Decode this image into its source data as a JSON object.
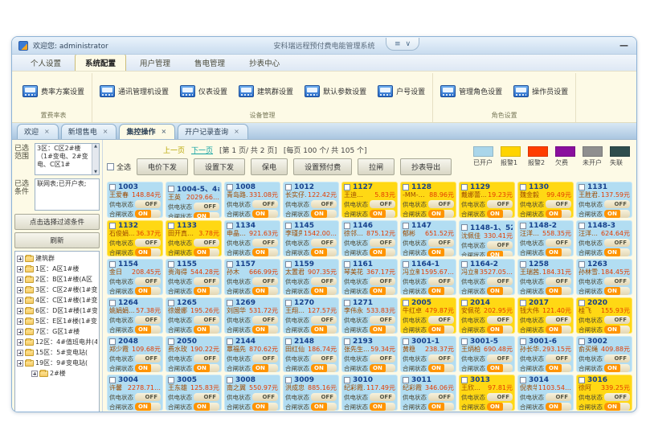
{
  "window": {
    "welcome": "欢迎您: administrator",
    "title": "安科瑞远程预付费电能管理系统",
    "minimize_glyph": "—"
  },
  "icons": {
    "close": "×",
    "ribbon_toggle": "≡",
    "dropdown": "∨",
    "scroll_up": "▲",
    "scroll_down": "▼"
  },
  "menu": {
    "tabs": [
      {
        "label": "个人设置",
        "active": false
      },
      {
        "label": "系统配置",
        "active": true
      },
      {
        "label": "用户管理",
        "active": false
      },
      {
        "label": "售电管理",
        "active": false
      },
      {
        "label": "抄表中心",
        "active": false
      }
    ]
  },
  "ribbon": {
    "groups": [
      {
        "caption": "置费率表",
        "buttons": [
          {
            "label": "费率方案设置"
          }
        ]
      },
      {
        "caption": "设备管理",
        "buttons": [
          {
            "label": "通讯管理机设置"
          },
          {
            "label": "仪表设置"
          },
          {
            "label": "建筑群设置"
          },
          {
            "label": "默认参数设置"
          },
          {
            "label": "户号设置"
          }
        ]
      },
      {
        "caption": "角色设置",
        "buttons": [
          {
            "label": "管理角色设置"
          },
          {
            "label": "操作员设置"
          }
        ]
      }
    ]
  },
  "doc_tabs": [
    {
      "label": "欢迎",
      "active": false
    },
    {
      "label": "新增售电",
      "active": false
    },
    {
      "label": "集控操作",
      "active": true
    },
    {
      "label": "开户记录查询",
      "active": false
    }
  ],
  "sidebar": {
    "range_label": "已选范围",
    "range_text": "3区：C区2#楼（1#变电、2#变电、C区1#",
    "cond_label": "已选条件",
    "cond_text": "联网表;已开户表;",
    "filter_button": "点击选择过滤条件",
    "refresh_button": "刷新",
    "tree_root": "建筑群",
    "tree_items": [
      {
        "label": "1区：A区1#楼"
      },
      {
        "label": "2区：B区1#楼(A区"
      },
      {
        "label": "3区：C区2#楼(1#变"
      },
      {
        "label": "4区：C区1#楼(1#变"
      },
      {
        "label": "6区：D区1#楼(1#变"
      },
      {
        "label": "5区：E区1#楼(1#变1"
      },
      {
        "label": "7区：G区1#楼"
      },
      {
        "label": "12区：4#值班电井(4#"
      },
      {
        "label": "15区：5#变电站("
      },
      {
        "label": "19区：9#变电站("
      },
      {
        "label": "2#楼",
        "child": true
      }
    ]
  },
  "pager": {
    "prev": "上一页",
    "next": "下一页",
    "page_info": "[第 1 页/ 共 2 页]",
    "count_info": "[每页 100 个/ 共 105 个]"
  },
  "toolbar": {
    "select_all": "全选",
    "buttons": [
      {
        "label": "电价下发"
      },
      {
        "label": "设置下发"
      },
      {
        "label": "保电"
      },
      {
        "label": "设置预付费"
      },
      {
        "label": "拉闸"
      },
      {
        "label": "抄表导出"
      }
    ]
  },
  "legend": [
    {
      "label": "已开户",
      "color": "#aad6ea"
    },
    {
      "label": "报警1",
      "color": "#ffd400"
    },
    {
      "label": "报警2",
      "color": "#ff3d00"
    },
    {
      "label": "欠费",
      "color": "#8a0f9e"
    },
    {
      "label": "未开户",
      "color": "#8f8f8f"
    },
    {
      "label": "失联",
      "color": "#2e4d4d"
    }
  ],
  "colors": {
    "open": "#b2ddf2",
    "alarm1": "#ffd814"
  },
  "card_labels": {
    "supply": "供电状态",
    "close": "合闸状态",
    "off": "OFF",
    "on": "ON"
  },
  "cards": [
    {
      "id": "1003",
      "name": "王爱春",
      "amount": "148.84元",
      "status": "open"
    },
    {
      "id": "1004-5、4#--",
      "name": "王英",
      "amount": "2029.66…",
      "status": "open"
    },
    {
      "id": "1008",
      "name": "青岛路…",
      "amount": "331.08元",
      "status": "open"
    },
    {
      "id": "1012",
      "name": "长实仔…",
      "amount": "122.42元",
      "status": "open"
    },
    {
      "id": "1127",
      "name": "王迪…",
      "amount": "5.83元",
      "status": "alarm1"
    },
    {
      "id": "1128",
      "name": "-MM-…",
      "amount": "88.96元",
      "status": "alarm1"
    },
    {
      "id": "1129",
      "name": "戴娜蕾…",
      "amount": "19.23元",
      "status": "alarm1"
    },
    {
      "id": "1130",
      "name": "魏金毅",
      "amount": "99.49元",
      "status": "alarm1"
    },
    {
      "id": "1131",
      "name": "王胜君…",
      "amount": "137.59元",
      "status": "open"
    },
    {
      "id": "1132",
      "name": "石俊娟…",
      "amount": "36.37元",
      "status": "alarm1"
    },
    {
      "id": "1133",
      "name": "田开真…",
      "amount": "3.78元",
      "status": "alarm1"
    },
    {
      "id": "1134",
      "name": "申晶…",
      "amount": "921.63元",
      "status": "open"
    },
    {
      "id": "1145",
      "name": "李瑾先…",
      "amount": "1542.00…",
      "status": "open"
    },
    {
      "id": "1146",
      "name": "徐邻…",
      "amount": "875.12元",
      "status": "open"
    },
    {
      "id": "1147",
      "name": "郁彬",
      "amount": "651.52元",
      "status": "open"
    },
    {
      "id": "1148-1、522",
      "name": "沈佩佳",
      "amount": "330.41元",
      "status": "open"
    },
    {
      "id": "1148-2",
      "name": "汪洋…",
      "amount": "558.35元",
      "status": "open"
    },
    {
      "id": "1148-3",
      "name": "汪洋…",
      "amount": "624.64元",
      "status": "open"
    },
    {
      "id": "1154",
      "name": "金日",
      "amount": "208.45元",
      "status": "open"
    },
    {
      "id": "1155",
      "name": "贵海得",
      "amount": "544.28元",
      "status": "open"
    },
    {
      "id": "1157",
      "name": "孙木",
      "amount": "666.99元",
      "status": "open"
    },
    {
      "id": "1159",
      "name": "太置君",
      "amount": "907.35元",
      "status": "open"
    },
    {
      "id": "1161",
      "name": "琴美花",
      "amount": "367.17元",
      "status": "open"
    },
    {
      "id": "1164-1",
      "name": "冯立新…",
      "amount": "1595.67…",
      "status": "open"
    },
    {
      "id": "1164-2",
      "name": "冯立新",
      "amount": "3527.05…",
      "status": "open"
    },
    {
      "id": "1258",
      "name": "王瑞茜…",
      "amount": "184.31元",
      "status": "open"
    },
    {
      "id": "1263",
      "name": "孙林雪…",
      "amount": "184.45元",
      "status": "open"
    },
    {
      "id": "1264",
      "name": "姚娟娟…",
      "amount": "57.38元",
      "status": "open"
    },
    {
      "id": "1265",
      "name": "徐媛娜",
      "amount": "195.26元",
      "status": "open"
    },
    {
      "id": "1269",
      "name": "刘国华",
      "amount": "531.72元",
      "status": "open"
    },
    {
      "id": "1270",
      "name": "王翔…",
      "amount": "127.57元",
      "status": "open"
    },
    {
      "id": "1271",
      "name": "李伟永",
      "amount": "533.83元",
      "status": "open"
    },
    {
      "id": "2005",
      "name": "牛红卓",
      "amount": "479.87元",
      "status": "alarm1"
    },
    {
      "id": "2014",
      "name": "安佩花",
      "amount": "202.95元",
      "status": "alarm1"
    },
    {
      "id": "2017",
      "name": "钱大伟",
      "amount": "121.40元",
      "status": "alarm1"
    },
    {
      "id": "2020",
      "name": "桂飞",
      "amount": "155.93元",
      "status": "alarm1"
    },
    {
      "id": "2048",
      "name": "郑少霞",
      "amount": "109.68元",
      "status": "open"
    },
    {
      "id": "2050",
      "name": "费水玫",
      "amount": "190.22元",
      "status": "open"
    },
    {
      "id": "2144",
      "name": "覃福先",
      "amount": "870.62元",
      "status": "open"
    },
    {
      "id": "2148",
      "name": "田红仙",
      "amount": "186.74元",
      "status": "open"
    },
    {
      "id": "2193",
      "name": "张先生…",
      "amount": "59.34元",
      "status": "open"
    },
    {
      "id": "3001-1",
      "name": "黄稳",
      "amount": "238.37元",
      "status": "open"
    },
    {
      "id": "3001-5",
      "name": "王炳柏",
      "amount": "690.48元",
      "status": "open"
    },
    {
      "id": "3001-6",
      "name": "孙长华…",
      "amount": "293.15元",
      "status": "open"
    },
    {
      "id": "3002",
      "name": "俞买绳",
      "amount": "409.88元",
      "status": "open"
    },
    {
      "id": "3004",
      "name": "许馨",
      "amount": "2278.71…",
      "status": "open"
    },
    {
      "id": "3005",
      "name": "王东雄",
      "amount": "125.83元",
      "status": "open"
    },
    {
      "id": "3008",
      "name": "南之翼",
      "amount": "550.97元",
      "status": "open"
    },
    {
      "id": "3009",
      "name": "洪成忠",
      "amount": "885.16元",
      "status": "open"
    },
    {
      "id": "3010",
      "name": "纪彩霞…",
      "amount": "117.49元",
      "status": "open"
    },
    {
      "id": "3011",
      "name": "纪彩霞",
      "amount": "346.06元",
      "status": "open"
    },
    {
      "id": "3013",
      "name": "王欣…",
      "amount": "97.81元",
      "status": "alarm1"
    },
    {
      "id": "3014",
      "name": "倪表华",
      "amount": "1103.54…",
      "status": "open"
    },
    {
      "id": "3016",
      "name": "徐阿",
      "amount": "339.25元",
      "status": "alarm1"
    }
  ]
}
